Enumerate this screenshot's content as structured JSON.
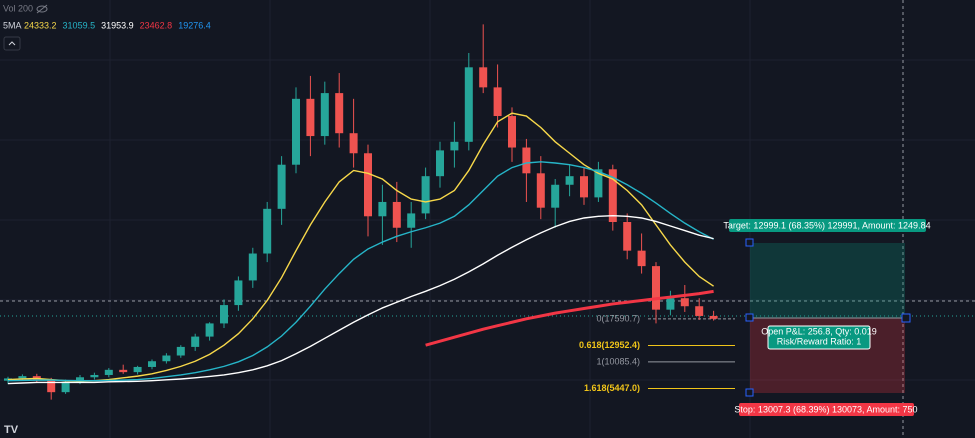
{
  "chart_data": {
    "type": "candlestick",
    "volume_label": "Vol 200",
    "legend_title": "5MA",
    "up_color": "#26a69a",
    "down_color": "#ef5350",
    "ylim": [
      -3200,
      73250
    ],
    "open": [
      6800,
      7200,
      7600,
      6900,
      4800,
      6600,
      7400,
      7800,
      8700,
      8300,
      9200,
      10200,
      11200,
      12700,
      14500,
      16800,
      20000,
      24300,
      29000,
      36800,
      44500,
      56000,
      49500,
      57000,
      50000,
      46500,
      35500,
      38000,
      33500,
      36000,
      42500,
      47000,
      48500,
      61500,
      58000,
      53000,
      47500,
      43000,
      37000,
      41000,
      42500,
      38800,
      43700,
      34500,
      29500,
      26800,
      19200,
      21200,
      19800,
      18100
    ],
    "high": [
      7500,
      7900,
      8000,
      7300,
      7000,
      7800,
      8200,
      9000,
      9600,
      9400,
      10500,
      11600,
      13000,
      15000,
      17000,
      21000,
      25000,
      30000,
      38000,
      46000,
      58000,
      60000,
      59000,
      60500,
      56000,
      48000,
      41000,
      41500,
      38000,
      44000,
      48500,
      52000,
      64000,
      69000,
      62000,
      54500,
      49000,
      46000,
      42000,
      44500,
      44000,
      45000,
      44500,
      36000,
      32500,
      27500,
      22500,
      23500,
      21200,
      19000
    ],
    "low": [
      6200,
      6800,
      6500,
      3500,
      4500,
      6200,
      7000,
      7400,
      8000,
      7900,
      8800,
      9800,
      10800,
      12000,
      13800,
      16000,
      19000,
      23000,
      27500,
      34000,
      43000,
      46000,
      48000,
      47500,
      44000,
      32000,
      30500,
      31000,
      30000,
      35000,
      40500,
      44000,
      47000,
      57000,
      51000,
      45000,
      38000,
      35000,
      33500,
      39000,
      37500,
      38000,
      33000,
      28000,
      25500,
      16800,
      18200,
      18800,
      17400,
      17300
    ],
    "close": [
      7200,
      7600,
      6900,
      4800,
      6600,
      7400,
      7800,
      8700,
      8300,
      9200,
      10200,
      11200,
      12700,
      14500,
      16800,
      20000,
      24300,
      29000,
      36800,
      44500,
      56000,
      49500,
      57000,
      50000,
      46500,
      35500,
      38000,
      33500,
      36000,
      42500,
      47000,
      48500,
      61500,
      58000,
      53000,
      47500,
      43000,
      37000,
      41000,
      42500,
      38800,
      43700,
      34500,
      29500,
      26800,
      19200,
      21200,
      19800,
      18100,
      17600
    ],
    "series": [
      {
        "color": "#f7d84a",
        "legend_value": 24333.2,
        "values": [
          7000,
          7100,
          7200,
          7000,
          6800,
          6700,
          6800,
          7000,
          7300,
          7600,
          8000,
          8600,
          9300,
          10200,
          11400,
          13000,
          15000,
          17600,
          20800,
          24800,
          29500,
          34000,
          38000,
          41500,
          43500,
          43000,
          42000,
          40000,
          38500,
          38000,
          38500,
          40000,
          43500,
          48000,
          52000,
          53500,
          53000,
          51000,
          48500,
          46500,
          44500,
          43000,
          42000,
          40000,
          37500,
          34000,
          30500,
          27500,
          25000,
          23300
        ]
      },
      {
        "color": "#26b5c8",
        "legend_value": 31059.5,
        "values": [
          6800,
          6850,
          6900,
          6900,
          6850,
          6800,
          6800,
          6850,
          6900,
          7000,
          7200,
          7500,
          7800,
          8200,
          8700,
          9300,
          10100,
          11200,
          12700,
          14600,
          17000,
          19800,
          22800,
          25500,
          28000,
          29800,
          31000,
          32000,
          32800,
          33500,
          34300,
          35500,
          37500,
          40000,
          42500,
          44000,
          44800,
          45000,
          44800,
          44500,
          44000,
          43300,
          42300,
          41000,
          39500,
          37800,
          36000,
          34300,
          32800,
          31500
        ]
      },
      {
        "color": "#ffffff",
        "legend_value": 31953.9,
        "values": [
          6300,
          6400,
          6500,
          6500,
          6500,
          6500,
          6500,
          6600,
          6650,
          6700,
          6800,
          6950,
          7100,
          7300,
          7550,
          7800,
          8200,
          8700,
          9400,
          10300,
          11500,
          12800,
          14200,
          15600,
          17000,
          18300,
          19500,
          20500,
          21500,
          22400,
          23400,
          24500,
          25800,
          27200,
          28700,
          30100,
          31400,
          32600,
          33700,
          34600,
          35200,
          35500,
          35600,
          35500,
          35200,
          34600,
          33800,
          33000,
          32200,
          31600
        ]
      },
      {
        "color": "#f23645",
        "legend_value": 23462.8,
        "values": [
          null,
          null,
          null,
          null,
          null,
          null,
          null,
          null,
          null,
          null,
          null,
          null,
          null,
          null,
          null,
          null,
          null,
          null,
          null,
          null,
          null,
          null,
          null,
          null,
          null,
          null,
          null,
          null,
          null,
          13000,
          13700,
          14400,
          15100,
          15800,
          16400,
          17000,
          17600,
          18100,
          18600,
          19000,
          19400,
          19800,
          20200,
          20500,
          20800,
          21100,
          21400,
          21700,
          22000,
          22400
        ]
      },
      {
        "color": "#2196f3",
        "legend_value": 19276.4,
        "values": []
      }
    ],
    "fib_levels": [
      {
        "value": 17590.7,
        "label": "0(17590.7)",
        "color": "#9598a1"
      },
      {
        "value": 12952.4,
        "label": "0.618(12952.4)",
        "color": "#f0c419"
      },
      {
        "value": 10085.4,
        "label": "1(10085.4)",
        "color": "#9598a1"
      },
      {
        "value": 5447.0,
        "label": "1.618(5447.0)",
        "color": "#f0c419"
      }
    ],
    "position": {
      "target_label": "Target: 12999.1 (68.35%) 129991, Amount: 1249.84",
      "stop_label": "Stop: 13007.3 (68.39%) 130073, Amount: 750",
      "pnl_label": "Open P&L: 256.8, Qty: 0.019",
      "ratio_label": "Risk/Reward Ratio: 1"
    }
  }
}
